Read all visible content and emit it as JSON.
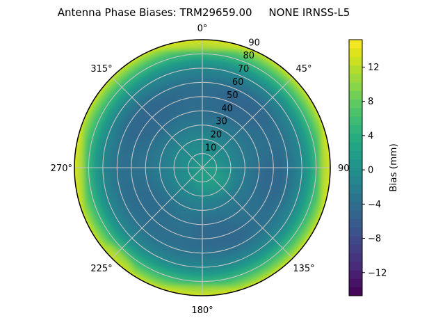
{
  "title": "Antenna Phase Biases: TRM29659.00     NONE IRNSS-L5",
  "chart_data": {
    "type": "heatmap",
    "projection": "polar",
    "title": "Antenna Phase Biases: TRM29659.00     NONE IRNSS-L5",
    "theta_tick_labels": [
      "0°",
      "45°",
      "90",
      "135°",
      "180°",
      "225°",
      "270°",
      "315°"
    ],
    "theta_direction": "clockwise-from-top",
    "r_tick_labels": [
      "10",
      "20",
      "30",
      "40",
      "50",
      "60",
      "70",
      "80",
      "90"
    ],
    "r_range": [
      0,
      90
    ],
    "grid": true,
    "colormap": "viridis",
    "colorbar": {
      "label": "Bias (mm)",
      "tick_labels": [
        "12",
        "8",
        "4",
        "0",
        "−4",
        "−8",
        "−12"
      ],
      "tick_values": [
        12,
        8,
        4,
        0,
        -4,
        -8,
        -12
      ],
      "range_estimate": [
        -14.7,
        15.2
      ],
      "discrete_levels": 30
    },
    "field_description": "Phase bias (mm) over the antenna hemisphere: near 0 mm at the zenith (center), dipping to about -4 mm in an annulus around zenith angles 40-65 (with darker patches NE, NW, E and SE), then rising steeply to about +13 mm at the horizon rim (zenith angle 90), brightest toward N, E and W.",
    "radial_profile_estimate": [
      {
        "zenith": 0,
        "bias_mm": 1.0
      },
      {
        "zenith": 10,
        "bias_mm": 0.0
      },
      {
        "zenith": 20,
        "bias_mm": -1.0
      },
      {
        "zenith": 30,
        "bias_mm": -2.5
      },
      {
        "zenith": 40,
        "bias_mm": -3.5
      },
      {
        "zenith": 55,
        "bias_mm": -4.0
      },
      {
        "zenith": 62,
        "bias_mm": -3.0
      },
      {
        "zenith": 70,
        "bias_mm": -1.0
      },
      {
        "zenith": 75,
        "bias_mm": 1.5
      },
      {
        "zenith": 80,
        "bias_mm": 5.0
      },
      {
        "zenith": 83,
        "bias_mm": 7.0
      },
      {
        "zenith": 85,
        "bias_mm": 8.5
      },
      {
        "zenith": 87.5,
        "bias_mm": 10.5
      },
      {
        "zenith": 90,
        "bias_mm": 13.0
      }
    ]
  }
}
